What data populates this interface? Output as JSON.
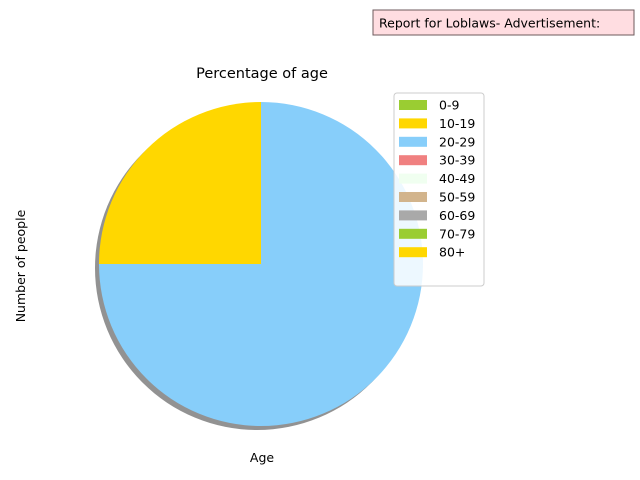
{
  "report_box": {
    "text": "Report for Loblaws- Advertisement:",
    "bg_color": "#ffdde1",
    "border_color": "#6e5a5c"
  },
  "chart_data": {
    "type": "pie",
    "title": "Percentage of age",
    "xlabel": "Age",
    "ylabel": "Number of people",
    "shadow": true,
    "legend_position": "upper-right",
    "slices": [
      {
        "label": "0-9",
        "value": 0,
        "color": "#9acd32"
      },
      {
        "label": "10-19",
        "value": 25,
        "color": "#ffd700"
      },
      {
        "label": "20-29",
        "value": 75,
        "color": "#87cefa"
      },
      {
        "label": "30-39",
        "value": 0,
        "color": "#f08080"
      },
      {
        "label": "40-49",
        "value": 0,
        "color": "#f0fff0"
      },
      {
        "label": "50-59",
        "value": 0,
        "color": "#d2b48c"
      },
      {
        "label": "60-69",
        "value": 0,
        "color": "#a9a9a9"
      },
      {
        "label": "70-79",
        "value": 0,
        "color": "#9acd32"
      },
      {
        "label": "80+",
        "value": 0,
        "color": "#ffd700"
      }
    ]
  }
}
